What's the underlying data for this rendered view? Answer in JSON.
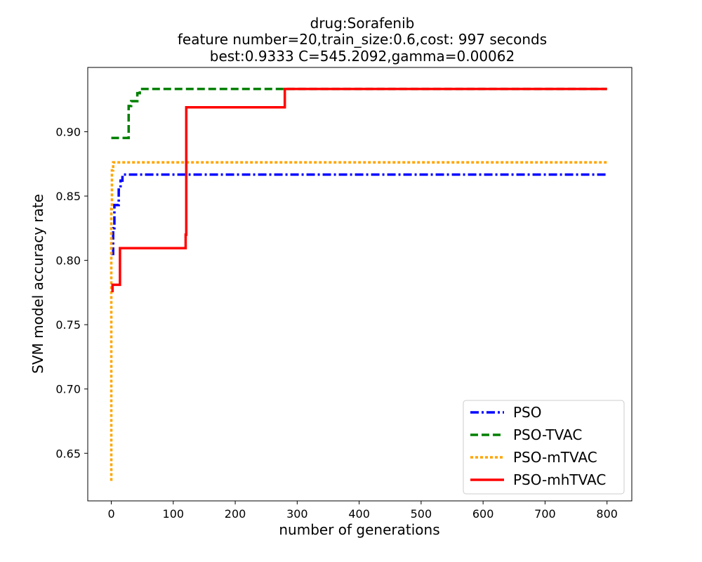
{
  "chart_data": {
    "type": "line",
    "title_lines": [
      "drug:Sorafenib",
      "feature number=20,train_size:0.6,cost: 997 seconds",
      "best:0.9333  C=545.2092,gamma=0.00062"
    ],
    "xlabel": "number of generations",
    "ylabel": "SVM model accuracy rate",
    "xlim": [
      -38,
      840
    ],
    "ylim": [
      0.613,
      0.95
    ],
    "xticks": [
      0,
      100,
      200,
      300,
      400,
      500,
      600,
      700,
      800
    ],
    "yticks": [
      0.65,
      0.7,
      0.75,
      0.8,
      0.85,
      0.9
    ],
    "ytick_labels": [
      "0.65",
      "0.70",
      "0.75",
      "0.80",
      "0.85",
      "0.90"
    ],
    "grid": false,
    "legend_position": "lower-right",
    "series": [
      {
        "name": "PSO",
        "color": "#0000ff",
        "style": "dashdot",
        "x": [
          0,
          3,
          3,
          5,
          5,
          12,
          12,
          15,
          15,
          18,
          18,
          800
        ],
        "y": [
          0.805,
          0.805,
          0.825,
          0.825,
          0.843,
          0.843,
          0.855,
          0.855,
          0.862,
          0.862,
          0.8667,
          0.8667
        ]
      },
      {
        "name": "PSO-TVAC",
        "color": "#008000",
        "style": "dashed",
        "x": [
          0,
          28,
          28,
          32,
          32,
          42,
          42,
          46,
          46,
          800
        ],
        "y": [
          0.8952,
          0.8952,
          0.92,
          0.92,
          0.9238,
          0.9238,
          0.93,
          0.93,
          0.9333,
          0.9333
        ]
      },
      {
        "name": "PSO-mTVAC",
        "color": "#ffa500",
        "style": "dotted",
        "x": [
          0,
          0,
          1,
          1,
          3,
          3,
          800
        ],
        "y": [
          0.6286,
          0.84,
          0.84,
          0.87,
          0.87,
          0.8762,
          0.8762
        ]
      },
      {
        "name": "PSO-mhTVAC",
        "color": "#ff0000",
        "style": "solid",
        "x": [
          0,
          2,
          2,
          14,
          14,
          120,
          120,
          121,
          121,
          280,
          280,
          800
        ],
        "y": [
          0.7762,
          0.7762,
          0.781,
          0.781,
          0.8095,
          0.8095,
          0.82,
          0.82,
          0.919,
          0.919,
          0.9333,
          0.9333
        ]
      }
    ]
  }
}
